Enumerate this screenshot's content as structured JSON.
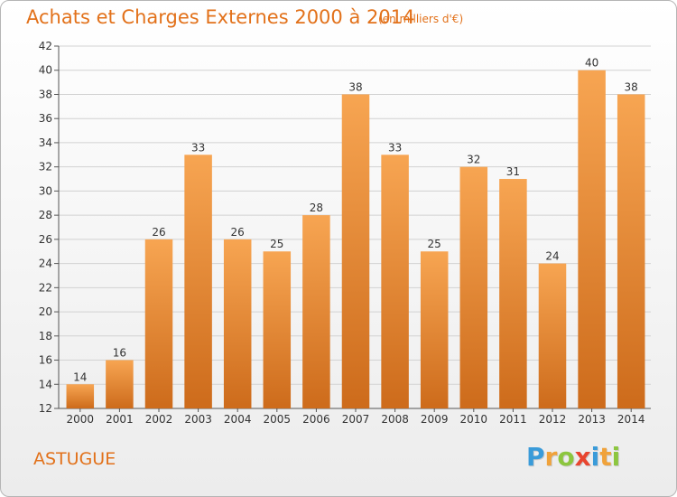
{
  "header": {
    "title": "Achats et Charges Externes 2000 à 2014",
    "subtitle": "(en milliers d'€)"
  },
  "footer": {
    "place": "ASTUGUE",
    "logo_text": "Proxiti",
    "logo_letters": [
      {
        "ch": "P",
        "color": "#3a9bd9"
      },
      {
        "ch": "r",
        "color": "#f0a23a"
      },
      {
        "ch": "o",
        "color": "#8cc63f"
      },
      {
        "ch": "x",
        "color": "#e8452f"
      },
      {
        "ch": "i",
        "color": "#3a9bd9"
      },
      {
        "ch": "t",
        "color": "#f0a23a"
      },
      {
        "ch": "i",
        "color": "#8cc63f"
      }
    ]
  },
  "colors": {
    "accent": "#e2711a",
    "bar_top": "#f7a552",
    "bar_bottom": "#cd6b1b",
    "grid": "#d2d2d2"
  },
  "chart_data": {
    "type": "bar",
    "title": "Achats et Charges Externes 2000 à 2014",
    "subtitle": "(en milliers d'€)",
    "categories": [
      "2000",
      "2001",
      "2002",
      "2003",
      "2004",
      "2005",
      "2006",
      "2007",
      "2008",
      "2009",
      "2010",
      "2011",
      "2012",
      "2013",
      "2014"
    ],
    "values": [
      14,
      16,
      26,
      33,
      26,
      25,
      28,
      38,
      33,
      25,
      32,
      31,
      24,
      40,
      38
    ],
    "ylim": [
      12,
      42
    ],
    "yticks": [
      12,
      14,
      16,
      18,
      20,
      22,
      24,
      26,
      28,
      30,
      32,
      34,
      36,
      38,
      40,
      42
    ],
    "grid": true,
    "legend": "none",
    "data_labels": true
  }
}
